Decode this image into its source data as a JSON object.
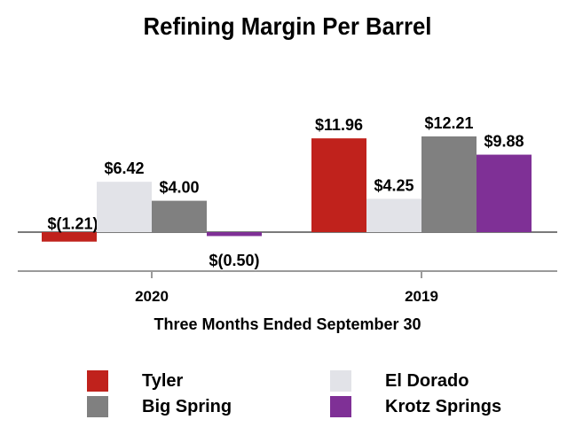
{
  "chart_data": {
    "type": "bar",
    "title": "Refining Margin Per Barrel",
    "xlabel": "Three Months Ended September 30",
    "ylabel": "",
    "categories": [
      "2020",
      "2019"
    ],
    "series": [
      {
        "name": "Tyler",
        "color": "#c0221c",
        "values": [
          -1.21,
          11.96
        ],
        "labels": [
          "$(1.21)",
          "$11.96"
        ]
      },
      {
        "name": "El Dorado",
        "color": "#e2e3e8",
        "values": [
          6.42,
          4.25
        ],
        "labels": [
          "$6.42",
          "$4.25"
        ]
      },
      {
        "name": "Big Spring",
        "color": "#808080",
        "values": [
          4.0,
          12.21
        ],
        "labels": [
          "$4.00",
          "$12.21"
        ]
      },
      {
        "name": "Krotz Springs",
        "color": "#7f3096",
        "values": [
          -0.5,
          9.88
        ],
        "labels": [
          "$(0.50)",
          "$9.88"
        ]
      }
    ],
    "ylim": [
      -5,
      16
    ],
    "grid": false,
    "legend_position": "bottom"
  }
}
